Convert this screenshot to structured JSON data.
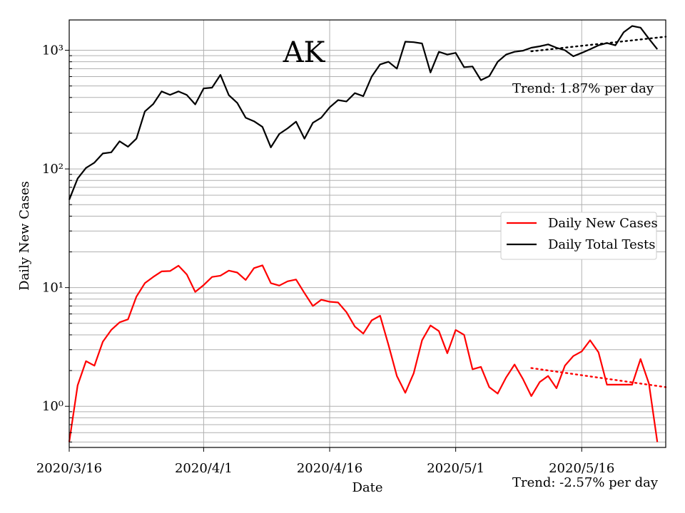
{
  "chart_data": {
    "type": "line",
    "title": "AK",
    "xlabel": "Date",
    "ylabel": "Daily New Cases",
    "yscale": "log",
    "ylim": [
      0.45,
      1800
    ],
    "xlim": [
      "2020-03-16",
      "2020-05-26"
    ],
    "grid": true,
    "legend_position": "center-right",
    "x_ticks": [
      {
        "date": "2020-03-16",
        "label": "2020/3/16"
      },
      {
        "date": "2020-04-01",
        "label": "2020/4/1"
      },
      {
        "date": "2020-04-16",
        "label": "2020/4/16"
      },
      {
        "date": "2020-05-01",
        "label": "2020/5/1"
      },
      {
        "date": "2020-05-16",
        "label": "2020/5/16"
      }
    ],
    "y_ticks": [
      {
        "value": 1,
        "label": "10⁰"
      },
      {
        "value": 10,
        "label": "10¹"
      },
      {
        "value": 100,
        "label": "10²"
      },
      {
        "value": 1000,
        "label": "10³"
      }
    ],
    "series": [
      {
        "name": "Daily New Cases",
        "color": "#ff0000",
        "start_date": "2020-03-16",
        "values": [
          0.5,
          1.5,
          2.4,
          2.2,
          3.5,
          4.4,
          5.1,
          5.4,
          8.4,
          10.9,
          12.3,
          13.7,
          13.8,
          15.3,
          12.9,
          9.2,
          10.5,
          12.3,
          12.6,
          13.9,
          13.4,
          11.6,
          14.6,
          15.4,
          10.9,
          10.4,
          11.3,
          11.7,
          9.0,
          7.0,
          7.9,
          7.6,
          7.5,
          6.2,
          4.7,
          4.1,
          5.3,
          5.8,
          3.3,
          1.8,
          1.3,
          1.9,
          3.6,
          4.8,
          4.3,
          2.8,
          4.4,
          4.0,
          2.05,
          2.15,
          1.45,
          1.28,
          1.75,
          2.25,
          1.7,
          1.22,
          1.6,
          1.8,
          1.42,
          2.2,
          2.65,
          2.9,
          3.6,
          2.85,
          1.52,
          1.52,
          1.52,
          1.52,
          2.5,
          1.55,
          0.5
        ]
      },
      {
        "name": "Daily Total Tests",
        "color": "#000000",
        "start_date": "2020-03-16",
        "values": [
          55,
          83,
          102,
          113,
          135,
          138,
          171,
          154,
          180,
          305,
          352,
          450,
          421,
          450,
          420,
          350,
          477,
          484,
          620,
          418,
          360,
          270,
          252,
          226,
          152,
          197,
          220,
          250,
          180,
          245,
          270,
          330,
          380,
          370,
          435,
          410,
          600,
          760,
          800,
          700,
          1180,
          1170,
          1140,
          650,
          970,
          920,
          950,
          720,
          730,
          560,
          605,
          800,
          920,
          970,
          990,
          1050,
          1080,
          1120,
          1050,
          1000,
          890,
          950,
          1020,
          1100,
          1150,
          1100,
          1420,
          1600,
          1550,
          1250,
          1020
        ]
      }
    ],
    "trendlines": [
      {
        "series": "Daily Total Tests",
        "color": "#000000",
        "style": "dotted",
        "start": {
          "date": "2020-05-10",
          "value": 980
        },
        "end": {
          "date": "2020-05-26",
          "value": 1300
        }
      },
      {
        "series": "Daily New Cases",
        "color": "#ff0000",
        "style": "dotted",
        "start": {
          "date": "2020-05-10",
          "value": 2.1
        },
        "end": {
          "date": "2020-05-26",
          "value": 1.45
        }
      }
    ]
  },
  "annotations": {
    "tests_trend": "Trend: 1.87% per day",
    "cases_trend": "Trend: -2.57% per day"
  }
}
